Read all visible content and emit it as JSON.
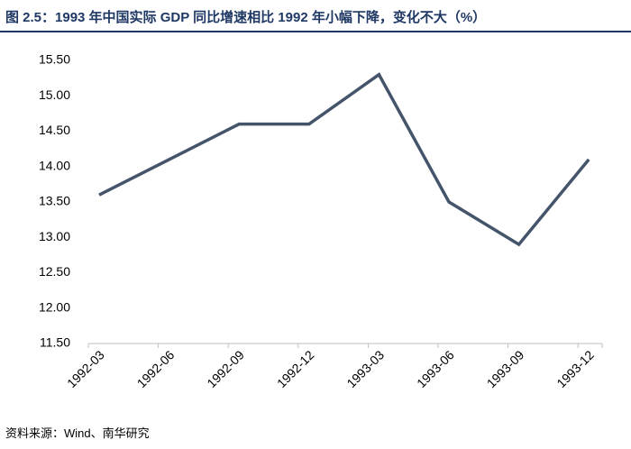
{
  "chart_data": {
    "type": "line",
    "title": "图 2.5：1993 年中国实际 GDP 同比增速相比 1992 年小幅下降，变化不大（%）",
    "source": "资料来源：Wind、南华研究",
    "categories": [
      "1992-03",
      "1992-06",
      "1992-09",
      "1992-12",
      "1993-03",
      "1993-06",
      "1993-09",
      "1993-12"
    ],
    "series": [
      {
        "name": "GDP",
        "color": "#44546a",
        "values": [
          13.6,
          14.1,
          14.6,
          14.6,
          15.3,
          13.5,
          12.9,
          14.1
        ]
      }
    ],
    "ylim": [
      11.5,
      15.5
    ],
    "yticks": [
      {
        "value": 11.5,
        "label": "11.50"
      },
      {
        "value": 12,
        "label": "12.00"
      },
      {
        "value": 12.5,
        "label": "12.50"
      },
      {
        "value": 13,
        "label": "13.00"
      },
      {
        "value": 13.5,
        "label": "13.50"
      },
      {
        "value": 14,
        "label": "14.00"
      },
      {
        "value": 14.5,
        "label": "14.50"
      },
      {
        "value": 15,
        "label": "15.00"
      },
      {
        "value": 15.5,
        "label": "15.50"
      }
    ]
  }
}
